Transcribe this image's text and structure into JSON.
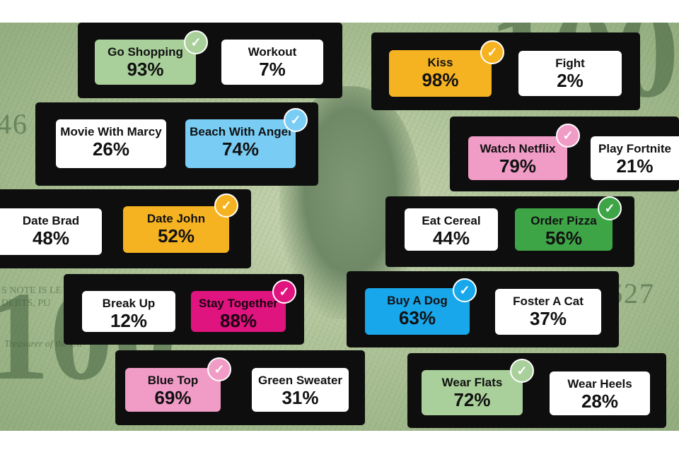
{
  "background": {
    "theme": "hundred-dollar-bill",
    "text_big": "100",
    "text_serial_right": "627",
    "text_serial_left": "46",
    "text_note": "S NOTE IS LE",
    "text_debts": "DEBTS, PU",
    "text_treasurer": "Treasurer of the Un"
  },
  "colors": {
    "panel": "#0e0e0e",
    "sage": "#a9cf9a",
    "yellow": "#f6b321",
    "skyblue": "#79cdf5",
    "pink": "#f19cc7",
    "green": "#3ea547",
    "magenta": "#e0147f",
    "blue": "#19a7ec",
    "white": "#ffffff"
  },
  "polls": [
    {
      "left": {
        "label": "Go Shopping",
        "pct": "93%",
        "style": "sage",
        "checked": true
      },
      "right": {
        "label": "Workout",
        "pct": "7%",
        "style": "white",
        "checked": false
      }
    },
    {
      "left": {
        "label": "Kiss",
        "pct": "98%",
        "style": "yellow",
        "checked": true
      },
      "right": {
        "label": "Fight",
        "pct": "2%",
        "style": "white",
        "checked": false
      }
    },
    {
      "left": {
        "label": "Movie With Marcy",
        "pct": "26%",
        "style": "white",
        "checked": false
      },
      "right": {
        "label": "Beach With Angel",
        "pct": "74%",
        "style": "skyblue",
        "checked": true
      }
    },
    {
      "left": {
        "label": "Watch Netflix",
        "pct": "79%",
        "style": "pink",
        "checked": true
      },
      "right": {
        "label": "Play Fortnite",
        "pct": "21%",
        "style": "white",
        "checked": false
      }
    },
    {
      "left": {
        "label": "Date Brad",
        "pct": "48%",
        "style": "white",
        "checked": false
      },
      "right": {
        "label": "Date John",
        "pct": "52%",
        "style": "yellow",
        "checked": true
      }
    },
    {
      "left": {
        "label": "Eat Cereal",
        "pct": "44%",
        "style": "white",
        "checked": false
      },
      "right": {
        "label": "Order Pizza",
        "pct": "56%",
        "style": "green",
        "checked": true
      }
    },
    {
      "left": {
        "label": "Break Up",
        "pct": "12%",
        "style": "white",
        "checked": false
      },
      "right": {
        "label": "Stay Together",
        "pct": "88%",
        "style": "magenta",
        "checked": true
      }
    },
    {
      "left": {
        "label": "Buy A Dog",
        "pct": "63%",
        "style": "blue",
        "checked": true
      },
      "right": {
        "label": "Foster A Cat",
        "pct": "37%",
        "style": "white",
        "checked": false
      }
    },
    {
      "left": {
        "label": "Blue Top",
        "pct": "69%",
        "style": "pink",
        "checked": true
      },
      "right": {
        "label": "Green Sweater",
        "pct": "31%",
        "style": "white",
        "checked": false
      }
    },
    {
      "left": {
        "label": "Wear Flats",
        "pct": "72%",
        "style": "sage",
        "checked": true
      },
      "right": {
        "label": "Wear Heels",
        "pct": "28%",
        "style": "white",
        "checked": false
      }
    }
  ],
  "check_icon_glyph": "✓"
}
